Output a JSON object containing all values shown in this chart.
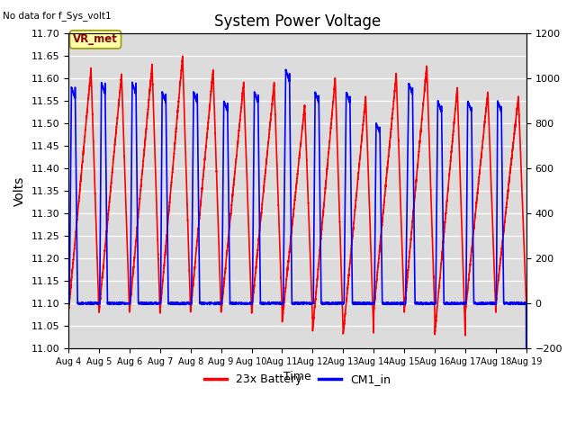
{
  "title": "System Power Voltage",
  "no_data_text": "No data for f_Sys_volt1",
  "xlabel": "Time",
  "ylabel": "Volts",
  "ylim_left": [
    11.0,
    11.7
  ],
  "ylim_right": [
    -200,
    1200
  ],
  "yticks_left": [
    11.0,
    11.05,
    11.1,
    11.15,
    11.2,
    11.25,
    11.3,
    11.35,
    11.4,
    11.45,
    11.5,
    11.55,
    11.6,
    11.65,
    11.7
  ],
  "yticks_right": [
    -200,
    0,
    200,
    400,
    600,
    800,
    1000,
    1200
  ],
  "xtick_labels": [
    "Aug 4",
    "Aug 5",
    "Aug 6",
    "Aug 7",
    "Aug 8",
    "Aug 9",
    "Aug 10",
    "Aug 11",
    "Aug 12",
    "Aug 13",
    "Aug 14",
    "Aug 15",
    "Aug 16",
    "Aug 17",
    "Aug 18",
    "Aug 19"
  ],
  "legend_labels": [
    "23x Battery",
    "CM1_in"
  ],
  "legend_colors": [
    "red",
    "blue"
  ],
  "vr_met_label": "VR_met",
  "background_color": "#dcdcdc",
  "line_color_red": "red",
  "line_color_blue": "blue",
  "line_width": 1.2,
  "fig_width": 6.4,
  "fig_height": 4.8,
  "dpi": 100
}
